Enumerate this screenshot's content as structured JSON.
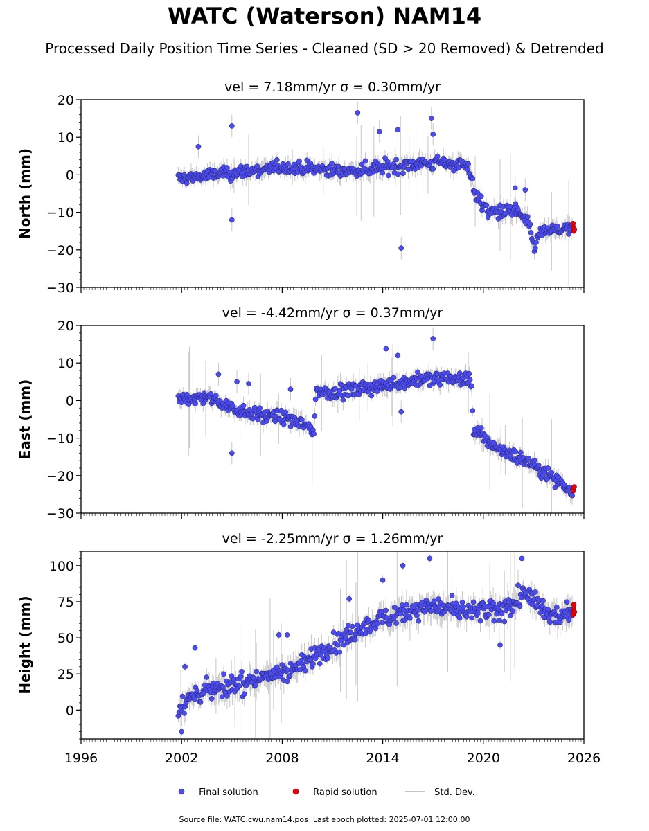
{
  "figure": {
    "title": "WATC (Waterson) NAM14",
    "subtitle": "Processed Daily Position Time Series - Cleaned (SD > 20 Removed) & Detrended",
    "source_label": "Source file:",
    "source_file": "WATC.cwu.nam14.pos",
    "last_epoch_label": "Last epoch plotted:",
    "last_epoch": "2025-07-01 12:00:00"
  },
  "colors": {
    "final": "#4b4bf0",
    "final_edge": "#202060",
    "rapid": "#e8000b",
    "std_dev": "#b0b0b0"
  },
  "legend": [
    {
      "key": "final",
      "label": "Final solution",
      "marker": "circle"
    },
    {
      "key": "rapid",
      "label": "Rapid solution",
      "marker": "circle"
    },
    {
      "key": "std",
      "label": "Std. Dev.",
      "marker": "line"
    }
  ],
  "chart_data": [
    {
      "type": "scatter",
      "component": "north",
      "title": "vel = 7.18mm/yr   σ = 0.30mm/yr",
      "ylabel": "North (mm)",
      "xlim": [
        1996,
        2026
      ],
      "ylim": [
        -30,
        20
      ],
      "yticks": [
        20,
        10,
        0,
        -10,
        -20,
        -30
      ],
      "xticks": [],
      "series": [
        {
          "name": "Final solution",
          "x_start": 2001.8,
          "x_end": 2025.3,
          "trend": [
            [
              2001.8,
              -1
            ],
            [
              2005.0,
              0.5
            ],
            [
              2008.0,
              2
            ],
            [
              2012.0,
              1
            ],
            [
              2016.0,
              3
            ],
            [
              2019.0,
              3
            ],
            [
              2019.6,
              -6
            ],
            [
              2020.4,
              -10
            ],
            [
              2022.0,
              -9.5
            ],
            [
              2022.8,
              -14
            ],
            [
              2023.0,
              -19
            ],
            [
              2023.5,
              -15
            ],
            [
              2025.3,
              -14.5
            ]
          ],
          "outliers": [
            [
              2005.0,
              13
            ],
            [
              2005.0,
              -12
            ],
            [
              2003.0,
              7.5
            ],
            [
              2012.5,
              16.5
            ],
            [
              2013.8,
              11.5
            ],
            [
              2014.9,
              12
            ],
            [
              2015.1,
              -19.5
            ],
            [
              2016.9,
              15
            ],
            [
              2017.0,
              10.8
            ],
            [
              2021.9,
              -3.5
            ],
            [
              2022.5,
              -4
            ]
          ]
        },
        {
          "name": "Rapid solution",
          "points": [
            [
              2025.35,
              -13
            ],
            [
              2025.38,
              -14
            ],
            [
              2025.4,
              -15
            ],
            [
              2025.43,
              -14.5
            ]
          ]
        }
      ]
    },
    {
      "type": "scatter",
      "component": "east",
      "title": "vel = -4.42mm/yr   σ = 0.37mm/yr",
      "ylabel": "East (mm)",
      "xlim": [
        1996,
        2026
      ],
      "ylim": [
        -30,
        20
      ],
      "yticks": [
        20,
        10,
        0,
        -10,
        -20,
        -30
      ],
      "xticks": [],
      "series": [
        {
          "name": "Final solution",
          "x_start": 2001.8,
          "x_end": 2025.3,
          "trend": [
            [
              2001.8,
              0
            ],
            [
              2003.5,
              1
            ],
            [
              2005.0,
              -2
            ],
            [
              2007.0,
              -4
            ],
            [
              2009.0,
              -5.5
            ],
            [
              2009.9,
              -8
            ],
            [
              2010.0,
              2
            ],
            [
              2012.0,
              2.5
            ],
            [
              2014.0,
              4
            ],
            [
              2016.0,
              5.5
            ],
            [
              2018.0,
              6
            ],
            [
              2019.3,
              5.5
            ],
            [
              2019.4,
              -8
            ],
            [
              2021.0,
              -13
            ],
            [
              2023.0,
              -17
            ],
            [
              2024.0,
              -20
            ],
            [
              2025.3,
              -24
            ]
          ],
          "outliers": [
            [
              2005.0,
              -14
            ],
            [
              2004.2,
              7
            ],
            [
              2005.3,
              5
            ],
            [
              2006.0,
              4.5
            ],
            [
              2008.5,
              3
            ],
            [
              2014.2,
              13.8
            ],
            [
              2014.9,
              12
            ],
            [
              2017.0,
              16.5
            ],
            [
              2015.1,
              -3
            ]
          ]
        },
        {
          "name": "Rapid solution",
          "points": [
            [
              2025.35,
              -23.5
            ],
            [
              2025.38,
              -24
            ],
            [
              2025.42,
              -23
            ]
          ]
        }
      ]
    },
    {
      "type": "scatter",
      "component": "height",
      "title": "vel = -2.25mm/yr   σ = 1.26mm/yr",
      "ylabel": "Height (mm)",
      "xlim": [
        1996,
        2026
      ],
      "ylim": [
        -20,
        110
      ],
      "yticks": [
        100,
        75,
        50,
        25,
        0
      ],
      "xticks": [
        1996,
        2002,
        2008,
        2014,
        2020,
        2026
      ],
      "series": [
        {
          "name": "Final solution",
          "x_start": 2001.8,
          "x_end": 2025.3,
          "trend": [
            [
              2001.8,
              2
            ],
            [
              2003.0,
              12
            ],
            [
              2005.0,
              17
            ],
            [
              2007.0,
              23
            ],
            [
              2009.0,
              30
            ],
            [
              2010.0,
              38
            ],
            [
              2011.0,
              45
            ],
            [
              2013.0,
              58
            ],
            [
              2015.0,
              68
            ],
            [
              2017.0,
              72
            ],
            [
              2019.0,
              68
            ],
            [
              2021.0,
              68
            ],
            [
              2022.5,
              80
            ],
            [
              2023.0,
              75
            ],
            [
              2024.0,
              65
            ],
            [
              2025.3,
              68
            ]
          ],
          "outliers": [
            [
              2002.0,
              -15
            ],
            [
              2002.2,
              30
            ],
            [
              2002.8,
              43
            ],
            [
              2007.8,
              52
            ],
            [
              2008.3,
              52
            ],
            [
              2012.0,
              77
            ],
            [
              2014.0,
              90
            ],
            [
              2015.2,
              100
            ],
            [
              2016.8,
              105
            ],
            [
              2022.3,
              105
            ],
            [
              2021.0,
              45
            ]
          ]
        },
        {
          "name": "Rapid solution",
          "points": [
            [
              2025.35,
              66
            ],
            [
              2025.38,
              70
            ],
            [
              2025.4,
              73
            ],
            [
              2025.43,
              68
            ]
          ]
        }
      ]
    }
  ]
}
